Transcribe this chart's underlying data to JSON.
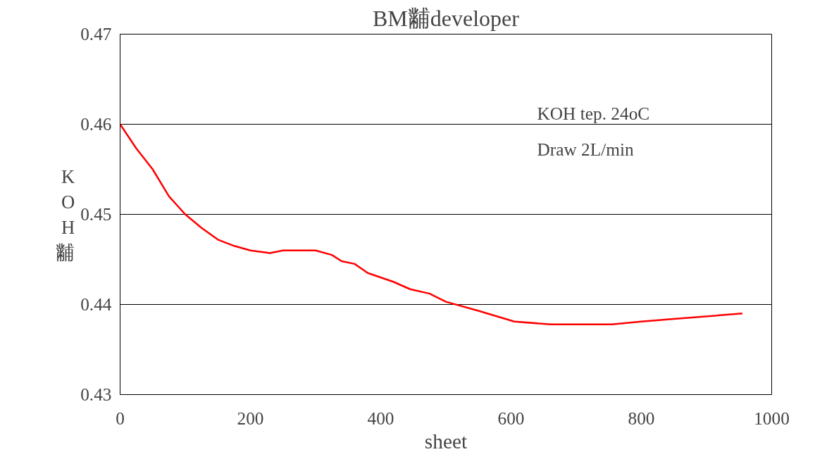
{
  "chart_data": {
    "type": "line",
    "title": "BM黼developer",
    "xlabel": "sheet",
    "ylabel": "KOH黼",
    "x": [
      0,
      25,
      50,
      75,
      100,
      125,
      150,
      175,
      200,
      230,
      250,
      300,
      325,
      340,
      360,
      380,
      420,
      445,
      475,
      500,
      550,
      605,
      660,
      755,
      800,
      850,
      955
    ],
    "series": [
      {
        "color": "#ff0000",
        "values": [
          0.46,
          0.4573,
          0.455,
          0.452,
          0.45,
          0.4485,
          0.4472,
          0.4465,
          0.446,
          0.4457,
          0.446,
          0.446,
          0.4455,
          0.4448,
          0.4445,
          0.4435,
          0.4425,
          0.4417,
          0.4412,
          0.4403,
          0.4393,
          0.4381,
          0.4378,
          0.4378,
          0.4381,
          0.4384,
          0.439
        ]
      }
    ],
    "xlim": [
      0,
      1000
    ],
    "ylim": [
      0.43,
      0.47
    ],
    "xticks": [
      0,
      200,
      400,
      600,
      800,
      1000
    ],
    "yticks": [
      {
        "value": 0.43,
        "label": "0.43"
      },
      {
        "value": 0.44,
        "label": "0.44"
      },
      {
        "value": 0.45,
        "label": "0.45"
      },
      {
        "value": 0.46,
        "label": "0.46"
      },
      {
        "value": 0.47,
        "label": "0.47"
      }
    ],
    "grid": "y",
    "marker": "none",
    "line_style": "solid",
    "annotations": [
      "KOH tep. 24oC",
      "Draw    2L/min"
    ]
  }
}
